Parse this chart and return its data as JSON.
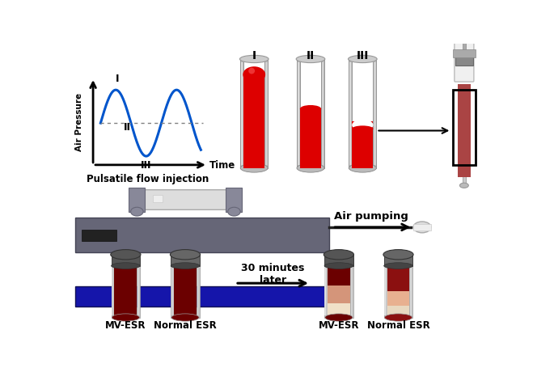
{
  "bg_color": "#ffffff",
  "sine_color": "#0055cc",
  "sine_linewidth": 2.2,
  "label_pulsatile": "Pulsatile flow injection",
  "label_air_pumping": "Air pumping",
  "label_30min": "30 minutes\nlater",
  "label_time": "Time",
  "label_air_pressure": "Air Pressure",
  "red_bright": "#dd0000",
  "red_dark": "#6b0000",
  "blue_device": "#1515aa",
  "gray_device": "#555566",
  "gray_cap": "#555555",
  "gray_wall": "#bbbbbb",
  "peach1": "#e8b090",
  "peach2": "#d4957a",
  "cream": "#f0e0c8",
  "syringe_bg": "#eeeeee",
  "blood_syr": "#aa4444"
}
